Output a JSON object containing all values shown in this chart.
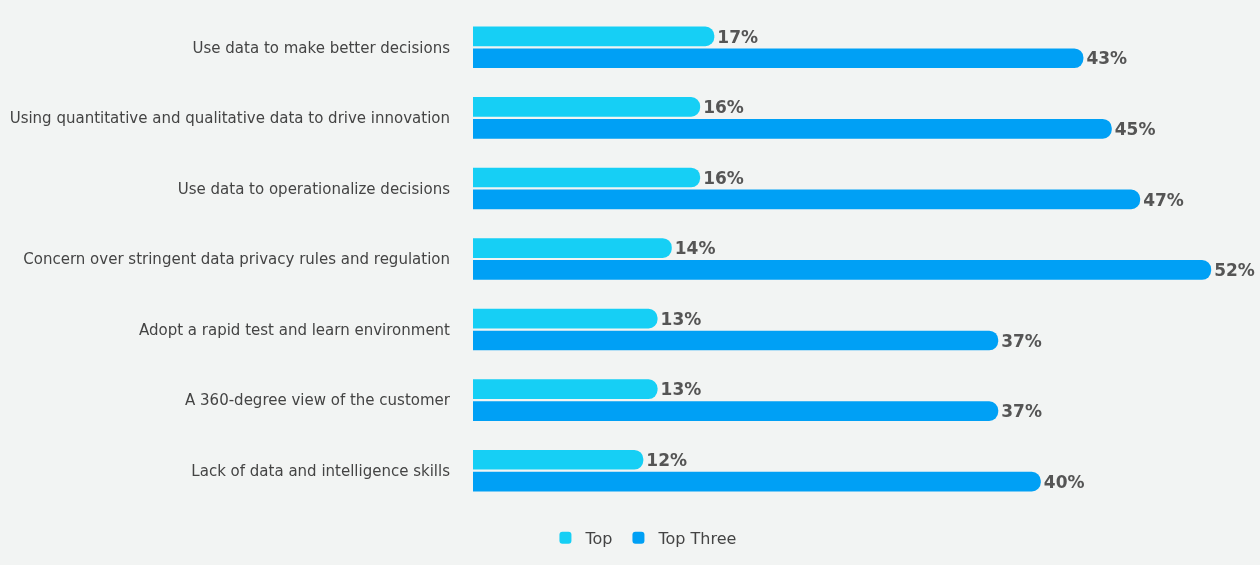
{
  "chart_data": {
    "type": "bar",
    "orientation": "horizontal",
    "categories": [
      "Use data to make better decisions",
      "Using quantitative and qualitative data to drive innovation",
      "Use data to operationalize decisions",
      "Concern over stringent data privacy rules and regulation",
      "Adopt a rapid test and learn environment",
      "A 360-degree view of the customer",
      "Lack of data and intelligence skills"
    ],
    "series": [
      {
        "name": "Top",
        "color": "#16cff5",
        "values": [
          17,
          16,
          16,
          14,
          13,
          13,
          12
        ],
        "value_labels": [
          "17%",
          "16%",
          "16%",
          "14%",
          "13%",
          "13%",
          "12%"
        ]
      },
      {
        "name": "Top Three",
        "color": "#00a0f5",
        "values": [
          43,
          45,
          47,
          52,
          37,
          37,
          40
        ],
        "value_labels": [
          "43%",
          "45%",
          "47%",
          "52%",
          "37%",
          "37%",
          "40%"
        ]
      }
    ],
    "tick_labels": "y",
    "grid": false,
    "legend": "bottom"
  }
}
